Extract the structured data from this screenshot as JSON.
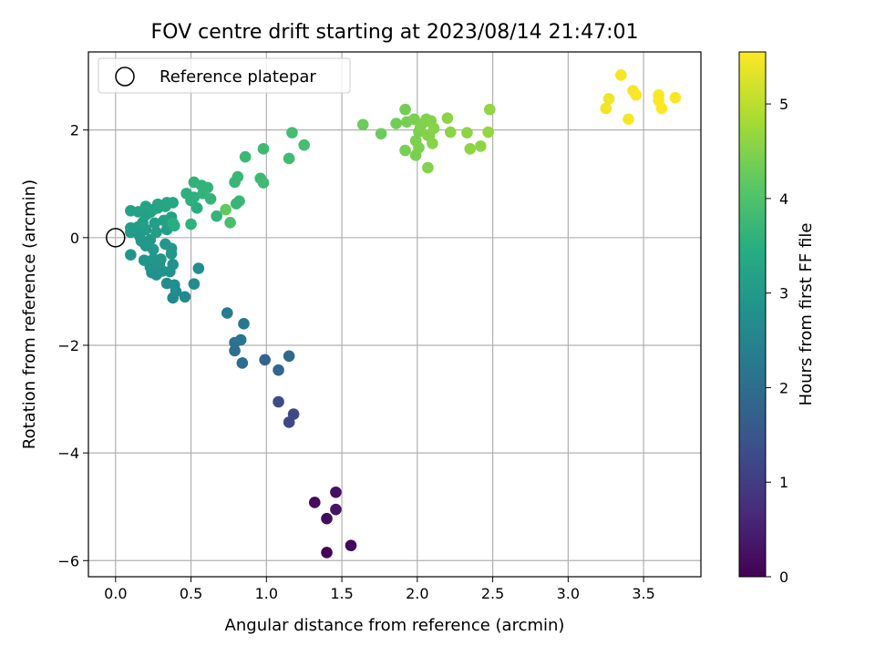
{
  "chart_data": {
    "type": "scatter",
    "title": "FOV centre drift starting at 2023/08/14 21:47:01",
    "xlabel": "Angular distance from reference (arcmin)",
    "ylabel": "Rotation from reference (arcmin)",
    "xlim": [
      -0.18,
      3.88
    ],
    "ylim": [
      -6.3,
      3.45
    ],
    "xticks": [
      0.0,
      0.5,
      1.0,
      1.5,
      2.0,
      2.5,
      3.0,
      3.5
    ],
    "xtick_labels": [
      "0.0",
      "0.5",
      "1.0",
      "1.5",
      "2.0",
      "2.5",
      "3.0",
      "3.5"
    ],
    "yticks": [
      -6,
      -4,
      -2,
      0,
      2
    ],
    "ytick_labels": [
      "−6",
      "−4",
      "−2",
      "0",
      "2"
    ],
    "grid": true,
    "legend": {
      "placement": "top-left",
      "entries": [
        "Reference platepar"
      ]
    },
    "reference_point": {
      "x": 0.0,
      "y": 0.0,
      "label": "Reference platepar"
    },
    "colorbar": {
      "label": "Hours from first FF file",
      "range": [
        0,
        5.55
      ],
      "ticks": [
        0,
        1,
        2,
        3,
        4,
        5
      ],
      "tick_labels": [
        "0",
        "1",
        "2",
        "3",
        "4",
        "5"
      ],
      "colormap": "viridis"
    },
    "points": [
      {
        "x": 1.4,
        "y": -5.85,
        "h": 0.05
      },
      {
        "x": 1.56,
        "y": -5.72,
        "h": 0.1
      },
      {
        "x": 1.32,
        "y": -4.92,
        "h": 0.15
      },
      {
        "x": 1.4,
        "y": -5.22,
        "h": 0.2
      },
      {
        "x": 1.46,
        "y": -4.73,
        "h": 0.25
      },
      {
        "x": 1.46,
        "y": -5.05,
        "h": 0.3
      },
      {
        "x": 1.15,
        "y": -3.43,
        "h": 1.2
      },
      {
        "x": 1.18,
        "y": -3.28,
        "h": 1.25
      },
      {
        "x": 1.08,
        "y": -3.05,
        "h": 1.3
      },
      {
        "x": 0.99,
        "y": -2.27,
        "h": 1.8
      },
      {
        "x": 1.08,
        "y": -2.46,
        "h": 1.85
      },
      {
        "x": 1.15,
        "y": -2.2,
        "h": 1.9
      },
      {
        "x": 0.84,
        "y": -2.33,
        "h": 2.0
      },
      {
        "x": 0.79,
        "y": -2.1,
        "h": 2.05
      },
      {
        "x": 0.79,
        "y": -1.95,
        "h": 2.1
      },
      {
        "x": 0.83,
        "y": -1.9,
        "h": 2.15
      },
      {
        "x": 0.85,
        "y": -1.6,
        "h": 2.2
      },
      {
        "x": 0.74,
        "y": -1.4,
        "h": 2.3
      },
      {
        "x": 0.38,
        "y": -1.12,
        "h": 2.6
      },
      {
        "x": 0.46,
        "y": -1.1,
        "h": 2.62
      },
      {
        "x": 0.4,
        "y": -1.0,
        "h": 2.65
      },
      {
        "x": 0.34,
        "y": -0.85,
        "h": 2.7
      },
      {
        "x": 0.39,
        "y": -0.88,
        "h": 2.72
      },
      {
        "x": 0.52,
        "y": -0.86,
        "h": 2.68
      },
      {
        "x": 0.55,
        "y": -0.57,
        "h": 2.75
      },
      {
        "x": 0.24,
        "y": -0.65,
        "h": 2.8
      },
      {
        "x": 0.27,
        "y": -0.69,
        "h": 2.8
      },
      {
        "x": 0.31,
        "y": -0.62,
        "h": 2.82
      },
      {
        "x": 0.36,
        "y": -0.63,
        "h": 2.85
      },
      {
        "x": 0.38,
        "y": -0.5,
        "h": 2.85
      },
      {
        "x": 0.29,
        "y": -0.5,
        "h": 2.88
      },
      {
        "x": 0.23,
        "y": -0.55,
        "h": 2.88
      },
      {
        "x": 0.19,
        "y": -0.42,
        "h": 2.9
      },
      {
        "x": 0.1,
        "y": -0.32,
        "h": 2.9
      },
      {
        "x": 0.25,
        "y": -0.4,
        "h": 2.92
      },
      {
        "x": 0.3,
        "y": -0.4,
        "h": 2.92
      },
      {
        "x": 0.37,
        "y": -0.3,
        "h": 2.95
      },
      {
        "x": 0.37,
        "y": -0.2,
        "h": 2.95
      },
      {
        "x": 0.33,
        "y": -0.12,
        "h": 2.97
      },
      {
        "x": 0.25,
        "y": -0.22,
        "h": 2.98
      },
      {
        "x": 0.2,
        "y": -0.15,
        "h": 3.0
      },
      {
        "x": 0.23,
        "y": -0.04,
        "h": 3.0
      },
      {
        "x": 0.17,
        "y": -0.06,
        "h": 3.0
      },
      {
        "x": 0.16,
        "y": 0.03,
        "h": 3.02
      },
      {
        "x": 0.1,
        "y": 0.1,
        "h": 3.05
      },
      {
        "x": 0.1,
        "y": 0.18,
        "h": 3.05
      },
      {
        "x": 0.15,
        "y": 0.2,
        "h": 3.05
      },
      {
        "x": 0.2,
        "y": 0.15,
        "h": 3.08
      },
      {
        "x": 0.27,
        "y": 0.1,
        "h": 3.1
      },
      {
        "x": 0.34,
        "y": 0.15,
        "h": 3.1
      },
      {
        "x": 0.18,
        "y": 0.28,
        "h": 3.1
      },
      {
        "x": 0.26,
        "y": 0.27,
        "h": 3.12
      },
      {
        "x": 0.32,
        "y": 0.32,
        "h": 3.15
      },
      {
        "x": 0.37,
        "y": 0.38,
        "h": 3.15
      },
      {
        "x": 0.2,
        "y": 0.42,
        "h": 3.15
      },
      {
        "x": 0.23,
        "y": 0.47,
        "h": 3.18
      },
      {
        "x": 0.1,
        "y": 0.5,
        "h": 3.2
      },
      {
        "x": 0.15,
        "y": 0.48,
        "h": 3.2
      },
      {
        "x": 0.28,
        "y": 0.55,
        "h": 3.22
      },
      {
        "x": 0.33,
        "y": 0.58,
        "h": 3.25
      },
      {
        "x": 0.38,
        "y": 0.65,
        "h": 3.3
      },
      {
        "x": 0.34,
        "y": 0.65,
        "h": 3.3
      },
      {
        "x": 0.28,
        "y": 0.62,
        "h": 3.28
      },
      {
        "x": 0.25,
        "y": 0.52,
        "h": 3.25
      },
      {
        "x": 0.2,
        "y": 0.58,
        "h": 3.25
      },
      {
        "x": 0.38,
        "y": 0.27,
        "h": 3.5
      },
      {
        "x": 0.39,
        "y": 0.22,
        "h": 3.5
      },
      {
        "x": 0.5,
        "y": 0.25,
        "h": 3.6
      },
      {
        "x": 0.54,
        "y": 0.55,
        "h": 3.5
      },
      {
        "x": 0.47,
        "y": 0.82,
        "h": 3.55
      },
      {
        "x": 0.52,
        "y": 0.75,
        "h": 3.55
      },
      {
        "x": 0.5,
        "y": 0.69,
        "h": 3.55
      },
      {
        "x": 0.52,
        "y": 1.03,
        "h": 3.6
      },
      {
        "x": 0.57,
        "y": 0.97,
        "h": 3.6
      },
      {
        "x": 0.61,
        "y": 0.93,
        "h": 3.62
      },
      {
        "x": 0.58,
        "y": 0.82,
        "h": 3.62
      },
      {
        "x": 0.63,
        "y": 0.72,
        "h": 3.65
      },
      {
        "x": 0.67,
        "y": 0.4,
        "h": 3.65
      },
      {
        "x": 0.76,
        "y": 0.28,
        "h": 3.9
      },
      {
        "x": 0.73,
        "y": 0.52,
        "h": 4.2
      },
      {
        "x": 0.8,
        "y": 0.63,
        "h": 3.7
      },
      {
        "x": 0.82,
        "y": 0.68,
        "h": 3.7
      },
      {
        "x": 0.79,
        "y": 1.03,
        "h": 3.7
      },
      {
        "x": 0.81,
        "y": 1.13,
        "h": 3.72
      },
      {
        "x": 0.86,
        "y": 1.5,
        "h": 3.75
      },
      {
        "x": 0.96,
        "y": 1.1,
        "h": 3.75
      },
      {
        "x": 0.98,
        "y": 1.02,
        "h": 3.78
      },
      {
        "x": 0.98,
        "y": 1.65,
        "h": 3.8
      },
      {
        "x": 1.15,
        "y": 1.47,
        "h": 3.82
      },
      {
        "x": 1.17,
        "y": 1.95,
        "h": 3.85
      },
      {
        "x": 1.25,
        "y": 1.72,
        "h": 3.88
      },
      {
        "x": 1.64,
        "y": 2.1,
        "h": 4.3
      },
      {
        "x": 1.76,
        "y": 1.93,
        "h": 4.3
      },
      {
        "x": 1.86,
        "y": 2.12,
        "h": 4.35
      },
      {
        "x": 1.92,
        "y": 2.38,
        "h": 4.35
      },
      {
        "x": 1.92,
        "y": 1.62,
        "h": 4.4
      },
      {
        "x": 1.93,
        "y": 2.15,
        "h": 4.4
      },
      {
        "x": 1.98,
        "y": 2.2,
        "h": 4.42
      },
      {
        "x": 1.99,
        "y": 1.53,
        "h": 4.42
      },
      {
        "x": 1.99,
        "y": 1.8,
        "h": 4.45
      },
      {
        "x": 2.01,
        "y": 1.97,
        "h": 4.45
      },
      {
        "x": 2.01,
        "y": 1.67,
        "h": 4.45
      },
      {
        "x": 2.02,
        "y": 2.05,
        "h": 4.48
      },
      {
        "x": 2.05,
        "y": 2.15,
        "h": 4.48
      },
      {
        "x": 2.06,
        "y": 2.2,
        "h": 4.5
      },
      {
        "x": 2.07,
        "y": 1.9,
        "h": 4.5
      },
      {
        "x": 2.07,
        "y": 1.3,
        "h": 4.5
      },
      {
        "x": 2.08,
        "y": 1.9,
        "h": 4.52
      },
      {
        "x": 2.09,
        "y": 2.17,
        "h": 4.52
      },
      {
        "x": 2.1,
        "y": 1.75,
        "h": 4.55
      },
      {
        "x": 2.11,
        "y": 2.03,
        "h": 4.55
      },
      {
        "x": 2.2,
        "y": 2.22,
        "h": 4.58
      },
      {
        "x": 2.22,
        "y": 1.96,
        "h": 4.6
      },
      {
        "x": 2.33,
        "y": 1.95,
        "h": 4.6
      },
      {
        "x": 2.35,
        "y": 1.65,
        "h": 4.62
      },
      {
        "x": 2.42,
        "y": 1.7,
        "h": 4.62
      },
      {
        "x": 2.47,
        "y": 1.96,
        "h": 4.65
      },
      {
        "x": 2.48,
        "y": 2.38,
        "h": 4.65
      },
      {
        "x": 3.25,
        "y": 2.4,
        "h": 5.45
      },
      {
        "x": 3.27,
        "y": 2.58,
        "h": 5.45
      },
      {
        "x": 3.35,
        "y": 3.02,
        "h": 5.5
      },
      {
        "x": 3.4,
        "y": 2.2,
        "h": 5.5
      },
      {
        "x": 3.43,
        "y": 2.73,
        "h": 5.5
      },
      {
        "x": 3.45,
        "y": 2.65,
        "h": 5.52
      },
      {
        "x": 3.6,
        "y": 2.65,
        "h": 5.52
      },
      {
        "x": 3.6,
        "y": 2.55,
        "h": 5.55
      },
      {
        "x": 3.62,
        "y": 2.4,
        "h": 5.55
      },
      {
        "x": 3.71,
        "y": 2.6,
        "h": 5.55
      }
    ]
  }
}
